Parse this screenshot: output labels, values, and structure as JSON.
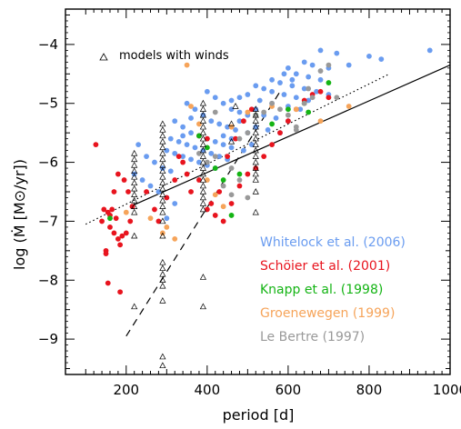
{
  "chart_data": {
    "type": "scatter",
    "xlabel": "period   [d]",
    "ylabel": "log (Ṁ [M⊙/yr])",
    "xlim": [
      50,
      1000
    ],
    "ylim": [
      -9.6,
      -3.4
    ],
    "xticks": [
      "200",
      "400",
      "600",
      "800",
      "1000"
    ],
    "yticks": [
      "−4",
      "−5",
      "−6",
      "−7",
      "−8",
      "−9"
    ],
    "models_label": "models with winds",
    "colors": {
      "whitelock": "#6a9cf0",
      "schoier": "#e8141e",
      "knapp": "#14b414",
      "groenewegen": "#f6a45a",
      "lebertre": "#999999",
      "models": "#000000"
    },
    "lines": [
      {
        "style": "solid",
        "points": [
          [
            210,
            -6.75
          ],
          [
            1000,
            -4.35
          ]
        ]
      },
      {
        "style": "dotted",
        "points": [
          [
            100,
            -7.05
          ],
          [
            850,
            -4.5
          ]
        ]
      },
      {
        "style": "dashed",
        "points": [
          [
            200,
            -8.95
          ],
          [
            580,
            -4.8
          ]
        ]
      }
    ],
    "legend": [
      {
        "label": "Whitelock et al. (2006)",
        "color_key": "whitelock"
      },
      {
        "label": "Schöier et al. (2001)",
        "color_key": "schoier"
      },
      {
        "label": "Knapp et al. (1998)",
        "color_key": "knapp"
      },
      {
        "label": "Groenewegen (1999)",
        "color_key": "groenewegen"
      },
      {
        "label": "Le Bertre (1997)",
        "color_key": "lebertre"
      }
    ],
    "series": [
      {
        "name": "Whitelock et al. (2006)",
        "color_key": "whitelock",
        "points": [
          [
            680,
            -4.1
          ],
          [
            720,
            -4.15
          ],
          [
            800,
            -4.2
          ],
          [
            830,
            -4.25
          ],
          [
            950,
            -4.1
          ],
          [
            640,
            -4.3
          ],
          [
            660,
            -4.35
          ],
          [
            700,
            -4.4
          ],
          [
            750,
            -4.35
          ],
          [
            600,
            -4.4
          ],
          [
            620,
            -4.5
          ],
          [
            650,
            -4.55
          ],
          [
            680,
            -4.6
          ],
          [
            560,
            -4.6
          ],
          [
            580,
            -4.65
          ],
          [
            610,
            -4.7
          ],
          [
            640,
            -4.75
          ],
          [
            670,
            -4.8
          ],
          [
            700,
            -4.85
          ],
          [
            520,
            -4.7
          ],
          [
            540,
            -4.75
          ],
          [
            560,
            -4.8
          ],
          [
            590,
            -4.85
          ],
          [
            620,
            -4.9
          ],
          [
            650,
            -4.95
          ],
          [
            500,
            -4.85
          ],
          [
            480,
            -4.9
          ],
          [
            460,
            -4.95
          ],
          [
            530,
            -4.95
          ],
          [
            560,
            -5.0
          ],
          [
            600,
            -5.05
          ],
          [
            630,
            -5.1
          ],
          [
            400,
            -4.8
          ],
          [
            420,
            -4.9
          ],
          [
            440,
            -5.0
          ],
          [
            460,
            -5.1
          ],
          [
            480,
            -5.15
          ],
          [
            500,
            -5.2
          ],
          [
            520,
            -5.1
          ],
          [
            540,
            -5.2
          ],
          [
            570,
            -5.25
          ],
          [
            600,
            -5.3
          ],
          [
            350,
            -5.0
          ],
          [
            370,
            -5.1
          ],
          [
            390,
            -5.2
          ],
          [
            410,
            -5.3
          ],
          [
            430,
            -5.35
          ],
          [
            450,
            -5.4
          ],
          [
            470,
            -5.45
          ],
          [
            500,
            -5.5
          ],
          [
            520,
            -5.4
          ],
          [
            550,
            -5.45
          ],
          [
            580,
            -5.5
          ],
          [
            320,
            -5.3
          ],
          [
            340,
            -5.4
          ],
          [
            360,
            -5.5
          ],
          [
            380,
            -5.55
          ],
          [
            400,
            -5.6
          ],
          [
            420,
            -5.65
          ],
          [
            440,
            -5.7
          ],
          [
            460,
            -5.75
          ],
          [
            490,
            -5.8
          ],
          [
            510,
            -5.7
          ],
          [
            310,
            -5.6
          ],
          [
            330,
            -5.65
          ],
          [
            350,
            -5.7
          ],
          [
            370,
            -5.75
          ],
          [
            390,
            -5.8
          ],
          [
            410,
            -5.85
          ],
          [
            430,
            -5.9
          ],
          [
            450,
            -5.95
          ],
          [
            300,
            -5.8
          ],
          [
            320,
            -5.85
          ],
          [
            340,
            -5.9
          ],
          [
            360,
            -5.95
          ],
          [
            380,
            -6.0
          ],
          [
            400,
            -6.05
          ],
          [
            420,
            -6.1
          ],
          [
            230,
            -5.7
          ],
          [
            250,
            -5.9
          ],
          [
            270,
            -6.0
          ],
          [
            290,
            -6.1
          ],
          [
            310,
            -6.15
          ],
          [
            220,
            -6.2
          ],
          [
            240,
            -6.3
          ],
          [
            260,
            -6.4
          ],
          [
            280,
            -6.5
          ],
          [
            300,
            -6.6
          ],
          [
            320,
            -6.7
          ],
          [
            300,
            -6.95
          ],
          [
            340,
            -5.55
          ],
          [
            360,
            -5.25
          ],
          [
            440,
            -5.55
          ],
          [
            460,
            -5.6
          ],
          [
            480,
            -5.3
          ],
          [
            590,
            -4.5
          ],
          [
            610,
            -4.6
          ]
        ]
      },
      {
        "name": "Schöier et al. (2001)",
        "color_key": "schoier",
        "points": [
          [
            125,
            -5.7
          ],
          [
            145,
            -6.8
          ],
          [
            155,
            -6.85
          ],
          [
            165,
            -6.8
          ],
          [
            170,
            -7.2
          ],
          [
            180,
            -7.3
          ],
          [
            190,
            -7.25
          ],
          [
            140,
            -7.0
          ],
          [
            150,
            -7.5
          ],
          [
            160,
            -7.1
          ],
          [
            175,
            -6.95
          ],
          [
            185,
            -7.4
          ],
          [
            200,
            -7.2
          ],
          [
            210,
            -7.0
          ],
          [
            215,
            -6.75
          ],
          [
            205,
            -6.5
          ],
          [
            195,
            -6.3
          ],
          [
            180,
            -6.2
          ],
          [
            170,
            -6.5
          ],
          [
            160,
            -6.9
          ],
          [
            150,
            -7.55
          ],
          [
            155,
            -8.05
          ],
          [
            185,
            -8.2
          ],
          [
            250,
            -6.5
          ],
          [
            270,
            -6.8
          ],
          [
            280,
            -7.0
          ],
          [
            300,
            -6.6
          ],
          [
            320,
            -6.3
          ],
          [
            330,
            -5.9
          ],
          [
            340,
            -6.0
          ],
          [
            350,
            -6.2
          ],
          [
            360,
            -6.5
          ],
          [
            380,
            -6.3
          ],
          [
            400,
            -6.8
          ],
          [
            420,
            -6.9
          ],
          [
            440,
            -7.0
          ],
          [
            460,
            -6.7
          ],
          [
            480,
            -6.4
          ],
          [
            500,
            -6.2
          ],
          [
            520,
            -6.1
          ],
          [
            540,
            -5.9
          ],
          [
            560,
            -5.7
          ],
          [
            580,
            -5.5
          ],
          [
            600,
            -5.3
          ],
          [
            620,
            -5.1
          ],
          [
            640,
            -4.95
          ],
          [
            660,
            -4.85
          ],
          [
            680,
            -4.8
          ],
          [
            700,
            -4.9
          ],
          [
            450,
            -5.9
          ],
          [
            470,
            -5.6
          ],
          [
            490,
            -5.3
          ],
          [
            510,
            -5.1
          ],
          [
            380,
            -5.55
          ],
          [
            400,
            -5.6
          ],
          [
            410,
            -6.7
          ],
          [
            430,
            -6.5
          ]
        ]
      },
      {
        "name": "Knapp et al. (1998)",
        "color_key": "knapp",
        "points": [
          [
            160,
            -6.95
          ],
          [
            380,
            -5.55
          ],
          [
            400,
            -5.75
          ],
          [
            420,
            -6.1
          ],
          [
            440,
            -6.3
          ],
          [
            460,
            -6.9
          ],
          [
            520,
            -5.2
          ],
          [
            560,
            -5.35
          ],
          [
            600,
            -5.1
          ],
          [
            640,
            -5.0
          ],
          [
            700,
            -4.65
          ],
          [
            650,
            -5.15
          ],
          [
            480,
            -6.2
          ]
        ]
      },
      {
        "name": "Groenewegen (1999)",
        "color_key": "groenewegen",
        "points": [
          [
            200,
            -6.85
          ],
          [
            260,
            -6.95
          ],
          [
            290,
            -7.2
          ],
          [
            320,
            -7.3
          ],
          [
            350,
            -4.35
          ],
          [
            360,
            -5.05
          ],
          [
            380,
            -5.35
          ],
          [
            400,
            -6.3
          ],
          [
            420,
            -6.55
          ],
          [
            440,
            -6.75
          ],
          [
            460,
            -5.4
          ],
          [
            500,
            -5.15
          ],
          [
            560,
            -5.05
          ],
          [
            620,
            -5.1
          ],
          [
            680,
            -5.3
          ],
          [
            750,
            -5.05
          ],
          [
            300,
            -7.1
          ]
        ]
      },
      {
        "name": "Le Bertre (1997)",
        "color_key": "lebertre",
        "points": [
          [
            380,
            -5.85
          ],
          [
            400,
            -6.0
          ],
          [
            420,
            -5.9
          ],
          [
            440,
            -6.4
          ],
          [
            460,
            -6.1
          ],
          [
            480,
            -5.6
          ],
          [
            500,
            -5.5
          ],
          [
            520,
            -5.2
          ],
          [
            540,
            -5.15
          ],
          [
            560,
            -5.0
          ],
          [
            580,
            -5.1
          ],
          [
            600,
            -5.2
          ],
          [
            620,
            -5.4
          ],
          [
            640,
            -5.0
          ],
          [
            660,
            -4.9
          ],
          [
            680,
            -4.45
          ],
          [
            700,
            -4.35
          ],
          [
            720,
            -4.9
          ],
          [
            420,
            -5.15
          ],
          [
            460,
            -6.55
          ],
          [
            480,
            -6.3
          ],
          [
            500,
            -6.6
          ],
          [
            620,
            -5.45
          ],
          [
            650,
            -4.75
          ]
        ]
      },
      {
        "name": "models with winds",
        "color_key": "models",
        "points": [
          [
            220,
            -5.85
          ],
          [
            220,
            -5.95
          ],
          [
            220,
            -6.05
          ],
          [
            220,
            -6.15
          ],
          [
            220,
            -6.25
          ],
          [
            220,
            -6.35
          ],
          [
            220,
            -6.45
          ],
          [
            220,
            -6.55
          ],
          [
            220,
            -6.65
          ],
          [
            220,
            -6.75
          ],
          [
            220,
            -6.85
          ],
          [
            220,
            -7.25
          ],
          [
            220,
            -8.45
          ],
          [
            290,
            -5.35
          ],
          [
            290,
            -5.45
          ],
          [
            290,
            -5.55
          ],
          [
            290,
            -5.65
          ],
          [
            290,
            -5.75
          ],
          [
            290,
            -5.85
          ],
          [
            290,
            -5.95
          ],
          [
            290,
            -6.05
          ],
          [
            290,
            -6.15
          ],
          [
            290,
            -6.25
          ],
          [
            290,
            -6.35
          ],
          [
            290,
            -6.45
          ],
          [
            290,
            -6.55
          ],
          [
            290,
            -6.65
          ],
          [
            290,
            -6.75
          ],
          [
            290,
            -6.85
          ],
          [
            290,
            -7.0
          ],
          [
            290,
            -7.25
          ],
          [
            290,
            -7.7
          ],
          [
            290,
            -7.8
          ],
          [
            290,
            -7.9
          ],
          [
            290,
            -8.0
          ],
          [
            290,
            -8.1
          ],
          [
            290,
            -8.35
          ],
          [
            290,
            -9.3
          ],
          [
            290,
            -9.45
          ],
          [
            390,
            -5.0
          ],
          [
            390,
            -5.1
          ],
          [
            390,
            -5.2
          ],
          [
            390,
            -5.3
          ],
          [
            390,
            -5.4
          ],
          [
            390,
            -5.5
          ],
          [
            390,
            -5.6
          ],
          [
            390,
            -5.7
          ],
          [
            390,
            -5.8
          ],
          [
            390,
            -5.9
          ],
          [
            390,
            -6.0
          ],
          [
            390,
            -6.1
          ],
          [
            390,
            -6.2
          ],
          [
            390,
            -6.3
          ],
          [
            390,
            -6.4
          ],
          [
            390,
            -6.5
          ],
          [
            390,
            -6.6
          ],
          [
            390,
            -6.7
          ],
          [
            390,
            -6.8
          ],
          [
            390,
            -7.95
          ],
          [
            390,
            -8.45
          ],
          [
            520,
            -5.1
          ],
          [
            520,
            -5.2
          ],
          [
            520,
            -5.3
          ],
          [
            520,
            -5.4
          ],
          [
            520,
            -5.5
          ],
          [
            520,
            -5.6
          ],
          [
            520,
            -5.7
          ],
          [
            520,
            -5.8
          ],
          [
            520,
            -5.9
          ],
          [
            520,
            -6.0
          ],
          [
            520,
            -6.1
          ],
          [
            520,
            -6.2
          ],
          [
            520,
            -6.3
          ],
          [
            520,
            -6.5
          ],
          [
            520,
            -6.85
          ],
          [
            460,
            -5.35
          ],
          [
            460,
            -5.65
          ],
          [
            470,
            -5.05
          ]
        ]
      }
    ]
  }
}
